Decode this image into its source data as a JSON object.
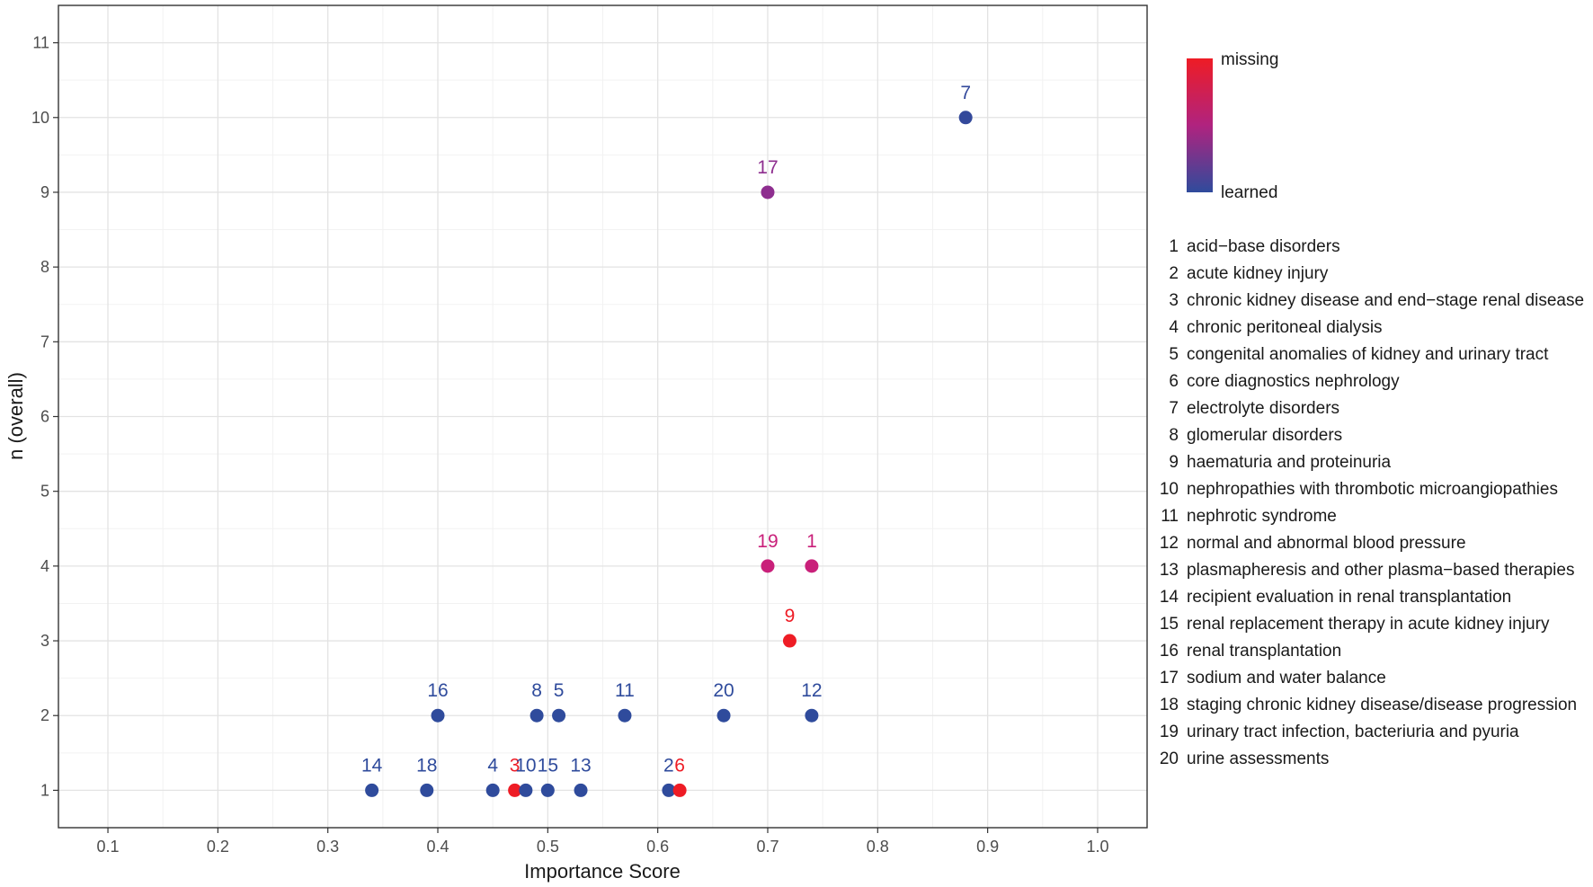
{
  "chart_data": {
    "type": "scatter",
    "xlabel": "Importance Score",
    "ylabel": "n (overall)",
    "xlim": [
      0.055,
      1.045
    ],
    "ylim": [
      0.5,
      11.5
    ],
    "x_ticks": [
      0.1,
      0.2,
      0.3,
      0.4,
      0.5,
      0.6,
      0.7,
      0.8,
      0.9,
      1.0
    ],
    "x_tick_labels": [
      "0.1",
      "0.2",
      "0.3",
      "0.4",
      "0.5",
      "0.6",
      "0.7",
      "0.8",
      "0.9",
      "1.0"
    ],
    "y_ticks": [
      1,
      2,
      3,
      4,
      5,
      6,
      7,
      8,
      9,
      10,
      11
    ],
    "y_tick_labels": [
      "1",
      "2",
      "3",
      "4",
      "5",
      "6",
      "7",
      "8",
      "9",
      "10",
      "11"
    ],
    "grid": true,
    "color_scale": {
      "low_label": "learned",
      "high_label": "missing",
      "low_color": "#2f4b9c",
      "high_color": "#ee1c25"
    },
    "points": [
      {
        "id": "7",
        "x": 0.88,
        "y": 10,
        "color": "#33499b"
      },
      {
        "id": "17",
        "x": 0.7,
        "y": 9,
        "color": "#8e2e8f"
      },
      {
        "id": "19",
        "x": 0.7,
        "y": 4,
        "color": "#c9207a"
      },
      {
        "id": "1",
        "x": 0.74,
        "y": 4,
        "color": "#c9207a"
      },
      {
        "id": "9",
        "x": 0.72,
        "y": 3,
        "color": "#ee1c25"
      },
      {
        "id": "16",
        "x": 0.4,
        "y": 2,
        "color": "#2f4b9c"
      },
      {
        "id": "8",
        "x": 0.49,
        "y": 2,
        "color": "#2f4b9c"
      },
      {
        "id": "5",
        "x": 0.51,
        "y": 2,
        "color": "#2f4b9c"
      },
      {
        "id": "11",
        "x": 0.57,
        "y": 2,
        "color": "#2f4b9c"
      },
      {
        "id": "20",
        "x": 0.66,
        "y": 2,
        "color": "#2f4b9c"
      },
      {
        "id": "12",
        "x": 0.74,
        "y": 2,
        "color": "#2f4b9c"
      },
      {
        "id": "14",
        "x": 0.34,
        "y": 1,
        "color": "#2f4b9c"
      },
      {
        "id": "18",
        "x": 0.39,
        "y": 1,
        "color": "#2f4b9c"
      },
      {
        "id": "4",
        "x": 0.45,
        "y": 1,
        "color": "#2f4b9c"
      },
      {
        "id": "3",
        "x": 0.47,
        "y": 1,
        "color": "#ee1c25"
      },
      {
        "id": "10",
        "x": 0.48,
        "y": 1,
        "color": "#2f4b9c"
      },
      {
        "id": "15",
        "x": 0.5,
        "y": 1,
        "color": "#2f4b9c"
      },
      {
        "id": "13",
        "x": 0.53,
        "y": 1,
        "color": "#2f4b9c"
      },
      {
        "id": "2",
        "x": 0.61,
        "y": 1,
        "color": "#2f4b9c"
      },
      {
        "id": "6",
        "x": 0.62,
        "y": 1,
        "color": "#ee1c25"
      }
    ],
    "legend_items": [
      {
        "num": "1",
        "label": "acid−base disorders"
      },
      {
        "num": "2",
        "label": "acute kidney injury"
      },
      {
        "num": "3",
        "label": "chronic kidney disease and end−stage renal disease"
      },
      {
        "num": "4",
        "label": "chronic peritoneal dialysis"
      },
      {
        "num": "5",
        "label": "congenital anomalies of kidney and urinary tract"
      },
      {
        "num": "6",
        "label": "core diagnostics nephrology"
      },
      {
        "num": "7",
        "label": "electrolyte disorders"
      },
      {
        "num": "8",
        "label": "glomerular disorders"
      },
      {
        "num": "9",
        "label": "haematuria and proteinuria"
      },
      {
        "num": "10",
        "label": "nephropathies with thrombotic microangiopathies"
      },
      {
        "num": "11",
        "label": "nephrotic syndrome"
      },
      {
        "num": "12",
        "label": "normal and abnormal blood pressure"
      },
      {
        "num": "13",
        "label": "plasmapheresis and other plasma−based therapies"
      },
      {
        "num": "14",
        "label": "recipient evaluation in renal transplantation"
      },
      {
        "num": "15",
        "label": "renal replacement therapy in acute kidney injury"
      },
      {
        "num": "16",
        "label": "renal transplantation"
      },
      {
        "num": "17",
        "label": "sodium and water balance"
      },
      {
        "num": "18",
        "label": "staging chronic kidney disease/disease progression"
      },
      {
        "num": "19",
        "label": "urinary tract infection, bacteriuria and pyuria"
      },
      {
        "num": "20",
        "label": "urine assessments"
      }
    ]
  }
}
